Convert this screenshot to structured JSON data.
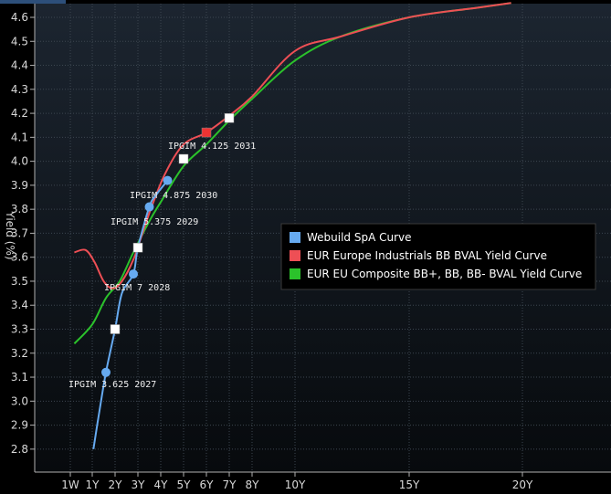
{
  "chart_data": {
    "type": "line",
    "ylabel": "Yield (%)",
    "ylim": [
      2.72,
      4.66
    ],
    "y_ticks": [
      "2.8",
      "2.9",
      "3.0",
      "3.1",
      "3.2",
      "3.3",
      "3.4",
      "3.5",
      "3.6",
      "3.7",
      "3.8",
      "3.9",
      "4.0",
      "4.1",
      "4.2",
      "4.3",
      "4.4",
      "4.5",
      "4.6"
    ],
    "x_ticks": [
      {
        "label": "1W",
        "years": 0.02
      },
      {
        "label": "1Y",
        "years": 1
      },
      {
        "label": "2Y",
        "years": 2
      },
      {
        "label": "3Y",
        "years": 3
      },
      {
        "label": "4Y",
        "years": 4
      },
      {
        "label": "5Y",
        "years": 5
      },
      {
        "label": "6Y",
        "years": 6
      },
      {
        "label": "7Y",
        "years": 7
      },
      {
        "label": "8Y",
        "years": 8
      },
      {
        "label": "10Y",
        "years": 10
      },
      {
        "label": "15Y",
        "years": 15
      },
      {
        "label": "20Y",
        "years": 20
      }
    ],
    "legend_position": "right",
    "series": [
      {
        "name": "Webuild SpA Curve",
        "color": "#66aaf0",
        "points": [
          [
            1.05,
            2.8
          ],
          [
            1.3,
            2.95
          ],
          [
            1.6,
            3.12
          ],
          [
            2.0,
            3.3
          ],
          [
            2.3,
            3.45
          ],
          [
            2.8,
            3.53
          ],
          [
            3.0,
            3.64
          ],
          [
            3.5,
            3.81
          ],
          [
            3.8,
            3.86
          ],
          [
            4.3,
            3.92
          ]
        ]
      },
      {
        "name": "EUR Europe Industrials BB BVAL Yield Curve",
        "color": "#ee4f55",
        "points": [
          [
            0.2,
            3.62
          ],
          [
            0.7,
            3.63
          ],
          [
            1.1,
            3.58
          ],
          [
            1.5,
            3.5
          ],
          [
            1.9,
            3.47
          ],
          [
            2.3,
            3.5
          ],
          [
            2.8,
            3.59
          ],
          [
            3.2,
            3.7
          ],
          [
            3.6,
            3.81
          ],
          [
            4.2,
            3.95
          ],
          [
            5.0,
            4.07
          ],
          [
            6.0,
            4.12
          ],
          [
            7.0,
            4.19
          ],
          [
            8.0,
            4.27
          ],
          [
            10.0,
            4.46
          ],
          [
            12.0,
            4.52
          ],
          [
            15.0,
            4.6
          ],
          [
            18.0,
            4.64
          ],
          [
            19.5,
            4.66
          ]
        ]
      },
      {
        "name": "EUR EU Composite BB+, BB, BB- BVAL Yield Curve",
        "color": "#2bc22b",
        "points": [
          [
            0.2,
            3.24
          ],
          [
            1.0,
            3.32
          ],
          [
            1.6,
            3.43
          ],
          [
            2.2,
            3.5
          ],
          [
            2.8,
            3.62
          ],
          [
            3.5,
            3.75
          ],
          [
            4.0,
            3.83
          ],
          [
            5.0,
            3.98
          ],
          [
            6.0,
            4.07
          ],
          [
            7.0,
            4.17
          ],
          [
            8.0,
            4.26
          ],
          [
            10.0,
            4.42
          ],
          [
            12.0,
            4.52
          ],
          [
            15.0,
            4.6
          ],
          [
            18.0,
            4.64
          ],
          [
            19.5,
            4.66
          ]
        ]
      }
    ],
    "markers": [
      {
        "shape": "circle",
        "years": 1.6,
        "y": 3.12,
        "color": "#66aaf0",
        "label": "IPGIM 3.625 2027"
      },
      {
        "shape": "circle",
        "years": 2.8,
        "y": 3.53,
        "color": "#66aaf0",
        "label": "IPGIM 7 2028"
      },
      {
        "shape": "circle",
        "years": 3.5,
        "y": 3.81,
        "color": "#66aaf0",
        "label": "IPGIM 5.375 2029"
      },
      {
        "shape": "circle",
        "years": 4.3,
        "y": 3.92,
        "color": "#66aaf0",
        "label": "IPGIM 4.875 2030"
      },
      {
        "shape": "square",
        "years": 6.0,
        "y": 4.12,
        "color": "#ee3333",
        "label": "IPGIM 4.125 2031"
      },
      {
        "shape": "square",
        "years": 2.0,
        "y": 3.3,
        "color": "#ffffff",
        "label": ""
      },
      {
        "shape": "square",
        "years": 3.0,
        "y": 3.64,
        "color": "#ffffff",
        "label": ""
      },
      {
        "shape": "square",
        "years": 5.0,
        "y": 4.01,
        "color": "#ffffff",
        "label": ""
      },
      {
        "shape": "square",
        "years": 7.0,
        "y": 4.18,
        "color": "#ffffff",
        "label": ""
      }
    ]
  }
}
